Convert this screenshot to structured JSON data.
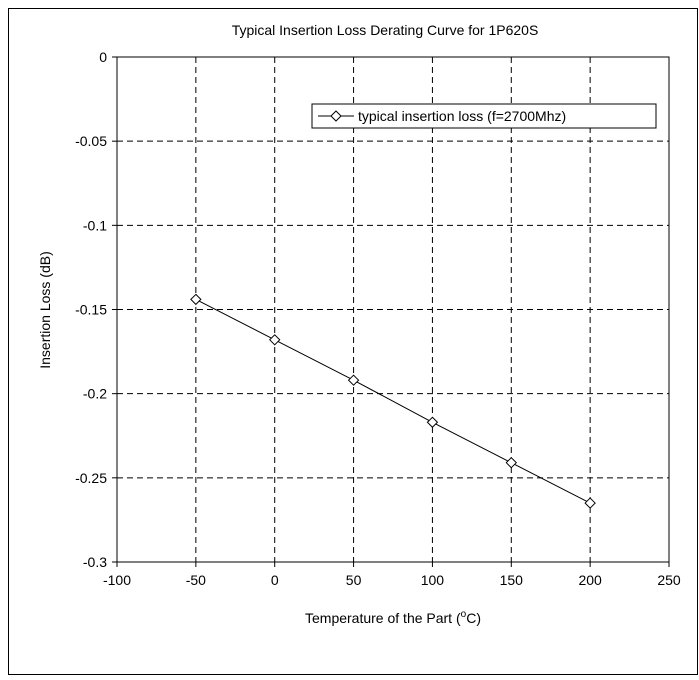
{
  "chart_data": {
    "type": "line",
    "title": "Typical Insertion Loss Derating Curve for 1P620S",
    "xlabel_main": "Temperature of the Part (",
    "xlabel_sup": "o",
    "xlabel_unit": "C)",
    "ylabel": "Insertion Loss (dB)",
    "xlim": [
      -100,
      250
    ],
    "ylim": [
      -0.3,
      0
    ],
    "x_ticks": [
      -100,
      -50,
      0,
      50,
      100,
      150,
      200,
      250
    ],
    "y_ticks": [
      0,
      -0.05,
      -0.1,
      -0.15,
      -0.2,
      -0.25,
      -0.3
    ],
    "x_tick_labels": [
      "-100",
      "-50",
      "0",
      "50",
      "100",
      "150",
      "200",
      "250"
    ],
    "y_tick_labels": [
      "0",
      "-0.05",
      "-0.1",
      "-0.15",
      "-0.2",
      "-0.25",
      "-0.3"
    ],
    "grid": true,
    "legend_position": "top-right",
    "series": [
      {
        "name": "typical insertion loss (f=2700Mhz)",
        "marker": "diamond",
        "color": "#000000",
        "x": [
          -50,
          0,
          50,
          100,
          150,
          200
        ],
        "y": [
          -0.144,
          -0.168,
          -0.192,
          -0.217,
          -0.241,
          -0.265
        ]
      }
    ]
  }
}
